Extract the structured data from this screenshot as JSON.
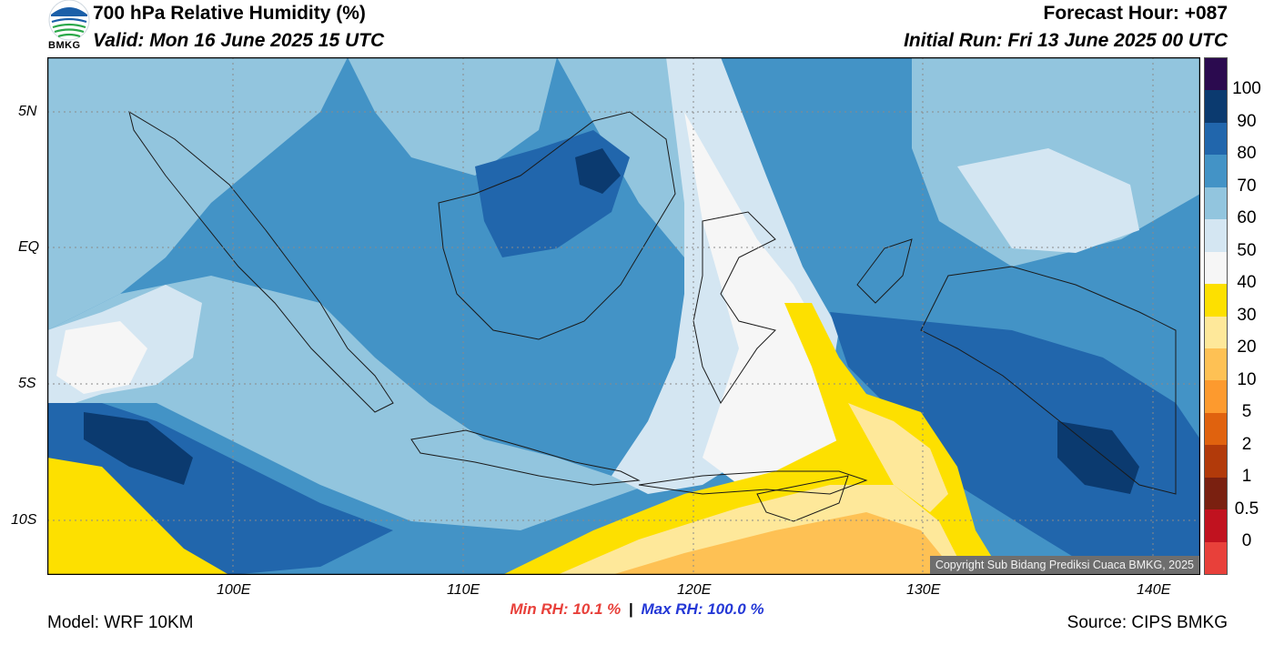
{
  "header": {
    "logo_text": "BMKG",
    "title": "700 hPa Relative Humidity (%)",
    "valid": "Valid: Mon 16 June 2025 15 UTC",
    "forecast_hour": "Forecast Hour: +087",
    "initial_run": "Initial Run: Fri 13 June 2025 00 UTC"
  },
  "map": {
    "lat_labels": [
      "5N",
      "EQ",
      "5S",
      "10S"
    ],
    "lon_labels": [
      "100E",
      "110E",
      "120E",
      "130E",
      "140E"
    ],
    "copyright": "Copyright Sub Bidang Prediksi Cuaca BMKG, 2025"
  },
  "colorbar": {
    "levels": [
      "100",
      "90",
      "80",
      "70",
      "60",
      "50",
      "40",
      "30",
      "20",
      "10",
      "5",
      "2",
      "1",
      "0.5",
      "0"
    ],
    "colors": [
      "#2b0a4f",
      "#0b3a6f",
      "#2166ac",
      "#4393c6",
      "#92c5de",
      "#d4e6f2",
      "#f6f6f6",
      "#fde000",
      "#fee89a",
      "#fec154",
      "#fd9a2e",
      "#e0620e",
      "#b23a0a",
      "#7a2010",
      "#c1121f",
      "#e8403a"
    ]
  },
  "stats": {
    "min_rh": "Min RH:  10.1 %",
    "separator": "|",
    "max_rh": "Max RH: 100.0 %"
  },
  "footer": {
    "model": "Model: WRF 10KM",
    "source": "Source: CIPS BMKG"
  }
}
